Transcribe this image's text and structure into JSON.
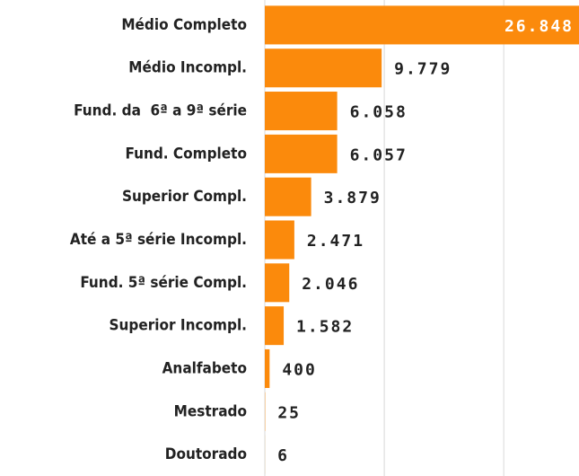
{
  "chart_data": {
    "type": "barh",
    "categories": [
      "Médio Completo",
      "Médio Incompl.",
      "Fund. da  6ª a 9ª série",
      "Fund. Completo",
      "Superior Compl.",
      "Até a 5ª série Incompl.",
      "Fund. 5ª série Compl.",
      "Superior Incompl.",
      "Analfabeto",
      "Mestrado",
      "Doutorado"
    ],
    "values": [
      26848,
      9779,
      6058,
      6057,
      3879,
      2471,
      2046,
      1582,
      400,
      25,
      6
    ],
    "value_labels": [
      "26.848",
      "9.779",
      "6.058",
      "6.057",
      "3.879",
      "2.471",
      "2.046",
      "1.582",
      "400",
      "25",
      "6"
    ],
    "color": "#fb8a0c",
    "xlim": [
      0,
      26300
    ],
    "xticks": [
      0,
      10000,
      20000
    ],
    "grid": true
  }
}
